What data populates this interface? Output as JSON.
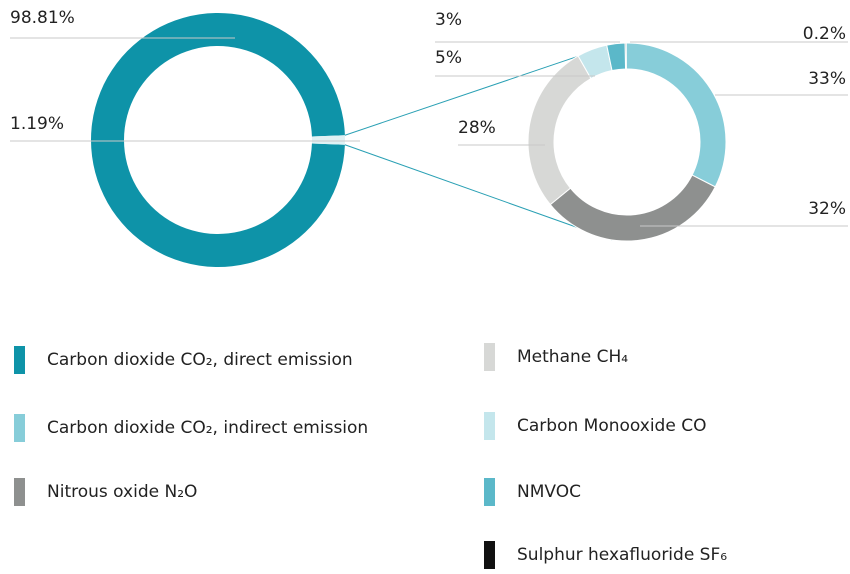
{
  "chart_data": [
    {
      "type": "pie",
      "categories": [
        "Carbon dioxide CO₂, direct emission",
        null
      ],
      "values": [
        98.81,
        1.19
      ],
      "value_labels": [
        "98.81%",
        "1.19%"
      ],
      "colors": [
        "#0e93a8",
        "#dff1f4"
      ]
    },
    {
      "type": "pie",
      "categories": [
        "Sulphur hexafluoride SF₆",
        "Carbon dioxide CO₂, indirect emission",
        "Nitrous oxide N₂O",
        "Methane CH₄",
        "Carbon Monooxide CO",
        "NMVOC"
      ],
      "values": [
        0.2,
        33,
        32,
        28,
        5,
        3
      ],
      "value_labels": [
        "0.2%",
        "33%",
        "32%",
        "28%",
        "5%",
        "3%"
      ],
      "colors": [
        "#111111",
        "#87cdd9",
        "#8e908f",
        "#d7d8d6",
        "#c4e6ec",
        "#5bb8c9"
      ]
    }
  ]
}
